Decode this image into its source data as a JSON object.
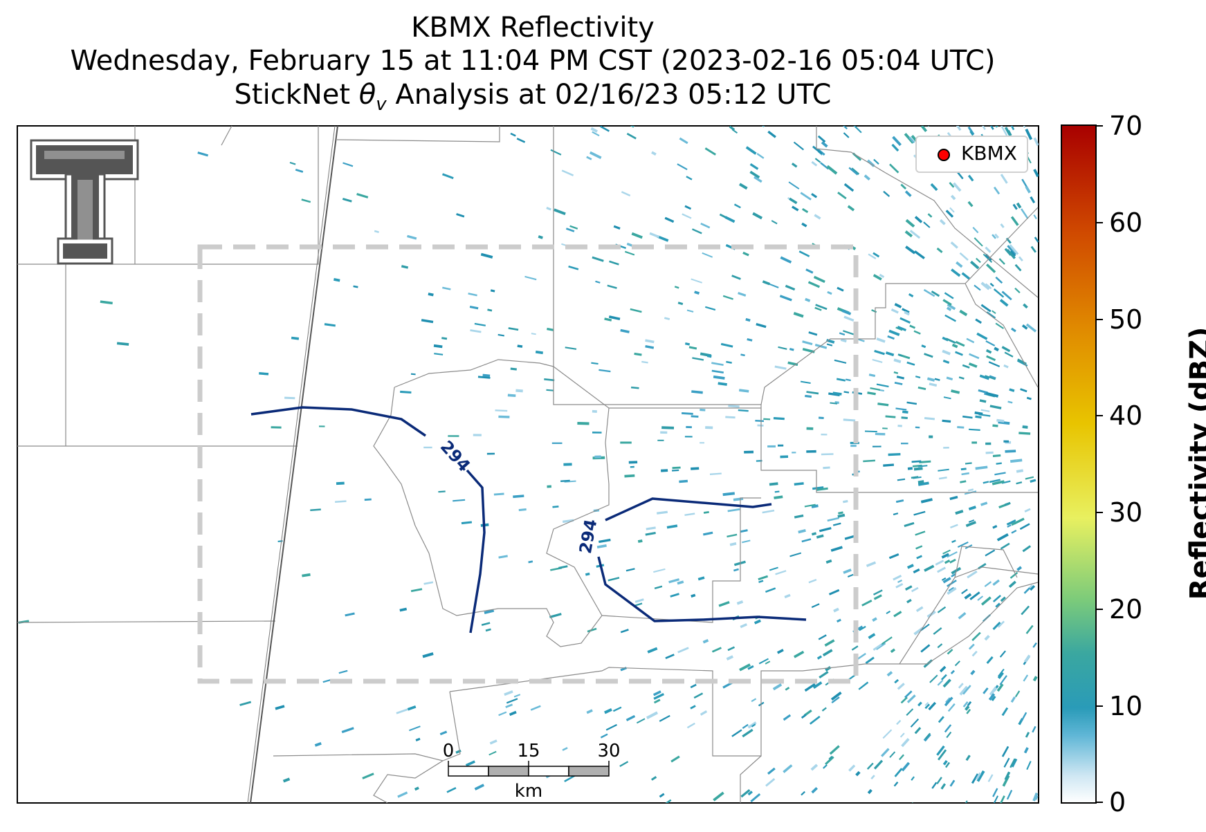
{
  "title": {
    "line1": "KBMX Reflectivity",
    "line2": "Wednesday, February 15 at 11:04 PM CST (2023-02-16 05:04 UTC)",
    "line3_prefix": "StickNet ",
    "line3_theta": "θ",
    "line3_sub": "v",
    "line3_suffix": " Analysis at 02/16/23 05:12 UTC"
  },
  "legend": {
    "label": "KBMX",
    "marker_color": "#ff0000"
  },
  "colorbar": {
    "label": "Reflectivity (dBZ)",
    "ticks": [
      "70",
      "60",
      "50",
      "40",
      "30",
      "20",
      "10",
      "0"
    ],
    "colors": [
      "#ffffff",
      "#9fd3e8",
      "#2a9bb8",
      "#3aa7a0",
      "#7ccb7a",
      "#e8f060",
      "#e8c400",
      "#e08a00",
      "#d04a00",
      "#a80000"
    ]
  },
  "contours": [
    {
      "label": "294",
      "color": "#0a2a78"
    },
    {
      "label": "294",
      "color": "#0a2a78"
    }
  ],
  "scale_bar": {
    "ticks": [
      "0",
      "15",
      "30"
    ],
    "unit": "km"
  },
  "logo": {
    "text": "TT",
    "color": "#555555"
  }
}
